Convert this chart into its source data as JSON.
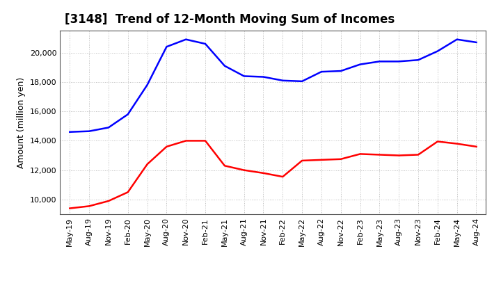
{
  "title": "[3148]  Trend of 12-Month Moving Sum of Incomes",
  "ylabel": "Amount (million yen)",
  "background_color": "#ffffff",
  "grid_color": "#bbbbbb",
  "x_labels": [
    "May-19",
    "Aug-19",
    "Nov-19",
    "Feb-20",
    "May-20",
    "Aug-20",
    "Nov-20",
    "Feb-21",
    "May-21",
    "Aug-21",
    "Nov-21",
    "Feb-22",
    "May-22",
    "Aug-22",
    "Nov-22",
    "Feb-23",
    "May-23",
    "Aug-23",
    "Nov-23",
    "Feb-24",
    "May-24",
    "Aug-24"
  ],
  "ordinary_income": [
    14600,
    14650,
    14900,
    15800,
    17800,
    20400,
    20900,
    20600,
    19100,
    18400,
    18350,
    18100,
    18050,
    18700,
    18750,
    19200,
    19400,
    19400,
    19500,
    20100,
    20900,
    20700
  ],
  "net_income": [
    9400,
    9550,
    9900,
    10500,
    12400,
    13600,
    14000,
    14000,
    12300,
    12000,
    11800,
    11550,
    12650,
    12700,
    12750,
    13100,
    13050,
    13000,
    13050,
    13950,
    13800,
    13600
  ],
  "ordinary_color": "#0000ff",
  "net_color": "#ff0000",
  "ylim": [
    9000,
    21500
  ],
  "yticks": [
    10000,
    12000,
    14000,
    16000,
    18000,
    20000
  ],
  "title_fontsize": 12,
  "axis_fontsize": 9,
  "tick_fontsize": 8
}
